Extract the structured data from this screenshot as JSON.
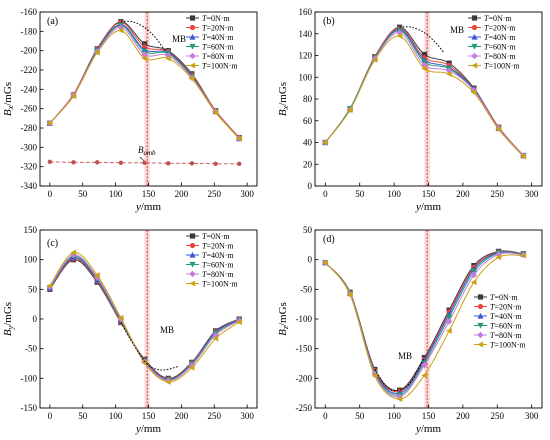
{
  "figure": {
    "title": ""
  },
  "legend_labels": [
    "T=0N·m",
    "T=20N·m",
    "T=40N·m",
    "T=60N·m",
    "T=80N·m",
    "T=100N·m"
  ],
  "series_colors": [
    "#3a3a3a",
    "#e8473b",
    "#3a55d6",
    "#1f9a7a",
    "#c77be0",
    "#c9a413"
  ],
  "series_markers": [
    "square",
    "circle",
    "triangle-up",
    "triangle-down",
    "diamond",
    "triangle-left"
  ],
  "mb_label": "MB",
  "chart_data": [
    {
      "type": "line",
      "panel_label": "(a)",
      "ylabel_main": "B",
      "ylabel_sub": "x",
      "ylabel_unit": "/mGs",
      "xlabel_main": "y",
      "xlabel_unit": "/mm",
      "xlim": [
        -15,
        315
      ],
      "ylim": [
        -340,
        -160
      ],
      "xticks": [
        0,
        50,
        100,
        150,
        200,
        250,
        300
      ],
      "yticks": [
        -340,
        -320,
        -300,
        -280,
        -260,
        -240,
        -220,
        -200,
        -180,
        -160
      ],
      "legend_position": "top-right",
      "x": [
        0,
        36,
        72,
        108,
        144,
        180,
        216,
        252,
        288
      ],
      "series": [
        {
          "name": "T=0N·m",
          "values": [
            -275,
            -246,
            -198,
            -170,
            -193,
            -200,
            -224,
            -262,
            -290
          ]
        },
        {
          "name": "T=20N·m",
          "values": [
            -275,
            -245,
            -198,
            -171,
            -196,
            -201,
            -225,
            -262,
            -290
          ]
        },
        {
          "name": "T=40N·m",
          "values": [
            -275,
            -246,
            -199,
            -173,
            -199,
            -202,
            -226,
            -263,
            -291
          ]
        },
        {
          "name": "T=60N·m",
          "values": [
            -275,
            -246,
            -200,
            -174,
            -201,
            -203,
            -227,
            -263,
            -291
          ]
        },
        {
          "name": "T=80N·m",
          "values": [
            -275,
            -246,
            -201,
            -176,
            -204,
            -205,
            -228,
            -263,
            -291
          ]
        },
        {
          "name": "T=100N·m",
          "values": [
            -275,
            -247,
            -202,
            -179,
            -208,
            -208,
            -229,
            -264,
            -291
          ]
        }
      ],
      "mb_curve": [
        [
          108,
          -170
        ],
        [
          125,
          -170
        ],
        [
          144,
          -176
        ],
        [
          160,
          -186
        ],
        [
          175,
          -200
        ]
      ],
      "ambient": {
        "label_main": "B",
        "label_sub": "amb",
        "x": [
          0,
          36,
          72,
          108,
          144,
          180,
          216,
          252,
          288
        ],
        "values": [
          -315,
          -315.5,
          -315.5,
          -316,
          -316,
          -316.5,
          -316.5,
          -317,
          -317
        ]
      },
      "highlight_x": [
        144,
        152
      ]
    },
    {
      "type": "line",
      "panel_label": "(b)",
      "ylabel_main": "B",
      "ylabel_sub": "x",
      "ylabel_unit": "/mGs",
      "xlabel_main": "y",
      "xlabel_unit": "/mm",
      "xlim": [
        -15,
        315
      ],
      "ylim": [
        0,
        160
      ],
      "xticks": [
        0,
        50,
        100,
        150,
        200,
        250,
        300
      ],
      "yticks": [
        0,
        20,
        40,
        60,
        80,
        100,
        120,
        140,
        160
      ],
      "legend_position": "top-right",
      "x": [
        0,
        36,
        72,
        108,
        144,
        180,
        216,
        252,
        288
      ],
      "series": [
        {
          "name": "T=0N·m",
          "values": [
            40,
            71,
            119,
            146,
            121,
            113,
            90,
            54,
            28
          ]
        },
        {
          "name": "T=20N·m",
          "values": [
            40,
            71,
            119,
            145,
            118,
            111,
            89,
            54,
            28
          ]
        },
        {
          "name": "T=40N·m",
          "values": [
            40,
            71,
            118,
            144,
            116,
            109,
            89,
            53,
            28
          ]
        },
        {
          "name": "T=60N·m",
          "values": [
            40,
            71,
            118,
            143,
            114,
            108,
            88,
            53,
            28
          ]
        },
        {
          "name": "T=80N·m",
          "values": [
            40,
            70,
            117,
            141,
            111,
            106,
            88,
            53,
            28
          ]
        },
        {
          "name": "T=100N·m",
          "values": [
            40,
            70,
            116,
            138,
            108,
            103,
            86,
            52,
            27
          ]
        }
      ],
      "mb_curve": [
        [
          108,
          146
        ],
        [
          125,
          146
        ],
        [
          144,
          141
        ],
        [
          160,
          132
        ],
        [
          172,
          123
        ]
      ],
      "highlight_x": [
        144,
        152
      ]
    },
    {
      "type": "line",
      "panel_label": "(c)",
      "ylabel_main": "B",
      "ylabel_sub": "y",
      "ylabel_unit": "/mGs",
      "xlabel_main": "y",
      "xlabel_unit": "/mm",
      "xlim": [
        -15,
        315
      ],
      "ylim": [
        -150,
        150
      ],
      "xticks": [
        0,
        50,
        100,
        150,
        200,
        250,
        300
      ],
      "yticks": [
        -150,
        -100,
        -50,
        0,
        50,
        100,
        150
      ],
      "legend_position": "top-right",
      "x": [
        0,
        36,
        72,
        108,
        144,
        180,
        216,
        252,
        288
      ],
      "series": [
        {
          "name": "T=0N·m",
          "values": [
            50,
            100,
            62,
            -6,
            -68,
            -100,
            -73,
            -20,
            0
          ]
        },
        {
          "name": "T=20N·m",
          "values": [
            51,
            102,
            64,
            -5,
            -69,
            -101,
            -74,
            -21,
            0
          ]
        },
        {
          "name": "T=40N·m",
          "values": [
            52,
            104,
            66,
            -3,
            -70,
            -102,
            -75,
            -22,
            -1
          ]
        },
        {
          "name": "T=60N·m",
          "values": [
            53,
            106,
            68,
            -2,
            -71,
            -103,
            -76,
            -24,
            -2
          ]
        },
        {
          "name": "T=80N·m",
          "values": [
            54,
            108,
            70,
            0,
            -72,
            -104,
            -78,
            -27,
            -3
          ]
        },
        {
          "name": "T=100N·m",
          "values": [
            56,
            112,
            74,
            2,
            -74,
            -106,
            -82,
            -33,
            -5
          ]
        }
      ],
      "mb_curve": [
        [
          108,
          -6
        ],
        [
          130,
          -48
        ],
        [
          150,
          -78
        ],
        [
          172,
          -86
        ],
        [
          195,
          -80
        ]
      ],
      "highlight_x": [
        144,
        152
      ]
    },
    {
      "type": "line",
      "panel_label": "(d)",
      "ylabel_main": "B",
      "ylabel_sub": "z",
      "ylabel_unit": "/mGs",
      "xlabel_main": "y",
      "xlabel_unit": "/mm",
      "xlim": [
        -15,
        315
      ],
      "ylim": [
        -250,
        50
      ],
      "xticks": [
        0,
        50,
        100,
        150,
        200,
        250,
        300
      ],
      "yticks": [
        -250,
        -200,
        -150,
        -100,
        -50,
        0,
        50
      ],
      "legend_position": "right",
      "x": [
        0,
        36,
        72,
        108,
        144,
        180,
        216,
        252,
        288
      ],
      "series": [
        {
          "name": "T=0N·m",
          "values": [
            -5,
            -55,
            -185,
            -220,
            -165,
            -85,
            -10,
            14,
            10
          ]
        },
        {
          "name": "T=20N·m",
          "values": [
            -5,
            -56,
            -187,
            -222,
            -168,
            -88,
            -13,
            13,
            10
          ]
        },
        {
          "name": "T=40N·m",
          "values": [
            -5,
            -57,
            -189,
            -225,
            -170,
            -92,
            -16,
            12,
            9
          ]
        },
        {
          "name": "T=60N·m",
          "values": [
            -5,
            -57,
            -191,
            -228,
            -174,
            -97,
            -20,
            11,
            9
          ]
        },
        {
          "name": "T=80N·m",
          "values": [
            -5,
            -58,
            -193,
            -231,
            -178,
            -104,
            -26,
            9,
            8
          ]
        },
        {
          "name": "T=100N·m",
          "values": [
            -5,
            -59,
            -196,
            -235,
            -195,
            -120,
            -38,
            4,
            7
          ]
        }
      ],
      "mb_curve": [
        [
          72,
          -185
        ],
        [
          90,
          -215
        ],
        [
          108,
          -220
        ],
        [
          125,
          -205
        ],
        [
          144,
          -165
        ]
      ],
      "highlight_x": [
        144,
        152
      ]
    }
  ]
}
